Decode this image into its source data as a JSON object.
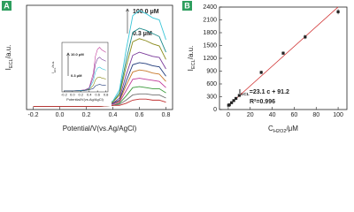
{
  "chart_data": [
    {
      "type": "line",
      "panel_label": "A",
      "xlabel": "Potential/V(vs.Ag/AgCl)",
      "ylabel": {
        "text": "I",
        "sub": "ECL",
        "rest": "/a.u."
      },
      "annotations": [
        "100.0 μM",
        "0.3 μM"
      ],
      "xlim": [
        -0.25,
        0.85
      ],
      "ylim": [
        0,
        100
      ],
      "xticks": [
        -0.2,
        {
          "value": 0,
          "label": "0.0"
        },
        0.2,
        0.4,
        0.6,
        0.8
      ],
      "x": [
        -0.2,
        0,
        0.2,
        0.3,
        0.4,
        0.45,
        0.5,
        0.55,
        0.6,
        0.65,
        0.7,
        0.75,
        0.8
      ],
      "series": [
        {
          "color": "#3cc6d8",
          "values": [
            3,
            3,
            4,
            5,
            8,
            19,
            57,
            90,
            95,
            92,
            88,
            86,
            67
          ]
        },
        {
          "color": "#1a8a8a",
          "values": [
            3,
            3,
            4,
            5,
            7,
            16,
            47,
            74,
            78,
            76,
            73,
            70,
            55
          ]
        },
        {
          "color": "#8a8a1a",
          "values": [
            3,
            3,
            4,
            5,
            7,
            14,
            41,
            65,
            68,
            66,
            63,
            61,
            48
          ]
        },
        {
          "color": "#7a3a9a",
          "values": [
            3,
            3,
            3,
            4,
            6,
            11,
            33,
            52,
            55,
            53,
            51,
            50,
            39
          ]
        },
        {
          "color": "#1f3a7a",
          "values": [
            3,
            3,
            3,
            4,
            6,
            9,
            27,
            43,
            45,
            44,
            42,
            41,
            32
          ]
        },
        {
          "color": "#c8782a",
          "values": [
            3,
            3,
            3,
            4,
            5,
            8,
            23,
            36,
            38,
            37,
            35,
            34,
            27
          ]
        },
        {
          "color": "#c03a9a",
          "values": [
            3,
            3,
            3,
            4,
            5,
            7,
            18,
            29,
            30,
            29,
            28,
            27,
            21
          ]
        },
        {
          "color": "#3a9a3a",
          "values": [
            3,
            3,
            3,
            3,
            4,
            6,
            13,
            21,
            22,
            21,
            20,
            20,
            16
          ]
        },
        {
          "color": "#707070",
          "values": [
            3,
            3,
            3,
            3,
            4,
            5,
            9,
            14,
            15,
            15,
            14,
            14,
            11
          ]
        },
        {
          "color": "#c03030",
          "values": [
            3,
            3,
            3,
            3,
            4,
            4,
            6,
            9,
            10,
            10,
            9,
            9,
            7
          ]
        }
      ]
    },
    {
      "type": "line",
      "xlabel": "Potential/V(vs.Ag/AgCl)",
      "ylabel": {
        "text": "I",
        "sub": "ECL",
        "rest": "/a.u."
      },
      "annotations": [
        "10.0 μM",
        "0.3 μM"
      ],
      "xlim": [
        -0.25,
        0.85
      ],
      "ylim": [
        0,
        100
      ],
      "xticks": [
        -0.2,
        {
          "value": 0,
          "label": "0.0"
        },
        0.2,
        0.4,
        0.6,
        0.8
      ],
      "x": [
        -0.2,
        0,
        0.2,
        0.3,
        0.4,
        0.5,
        0.55,
        0.6,
        0.65,
        0.7,
        0.8
      ],
      "series": [
        {
          "color": "#c03a9a",
          "values": [
            2,
            2,
            3,
            4,
            8,
            38,
            72,
            86,
            90,
            85,
            80
          ]
        },
        {
          "color": "#7a3a9a",
          "values": [
            2,
            2,
            3,
            4,
            7,
            30,
            56,
            67,
            70,
            66,
            62
          ]
        },
        {
          "color": "#3cc6d8",
          "values": [
            2,
            2,
            3,
            3,
            6,
            22,
            40,
            48,
            50,
            47,
            44
          ]
        },
        {
          "color": "#8a8a1a",
          "values": [
            2,
            2,
            2,
            3,
            5,
            13,
            24,
            29,
            30,
            28,
            26
          ]
        },
        {
          "color": "#1f3a7a",
          "values": [
            2,
            2,
            2,
            3,
            4,
            7,
            12,
            14,
            15,
            14,
            13
          ]
        }
      ]
    },
    {
      "type": "scatter",
      "panel_label": "B",
      "xlabel": {
        "text": "C",
        "sub": "H2O2",
        "rest": "/μM"
      },
      "ylabel": {
        "text": "I",
        "sub": "ECL",
        "rest": "/a.u."
      },
      "annotations": [
        {
          "text": "I",
          "sub": "ECL",
          "rest": "=23.1 c + 91.2"
        },
        "R²=0.996"
      ],
      "xlim": [
        -8,
        108
      ],
      "ylim": [
        0,
        2400
      ],
      "xticks": [
        0,
        20,
        40,
        60,
        80,
        100
      ],
      "yticks": [
        0,
        300,
        600,
        900,
        1200,
        1500,
        1800,
        2100,
        2400
      ],
      "x": [
        0.3,
        1,
        3,
        5,
        7,
        10,
        30,
        50,
        70,
        100
      ],
      "values": [
        100,
        110,
        160,
        210,
        260,
        330,
        870,
        1320,
        1700,
        2290
      ],
      "errors": [
        20,
        20,
        20,
        20,
        20,
        30,
        40,
        40,
        50,
        60
      ],
      "color": "#222222",
      "fit_color": "#d03030",
      "fit": {
        "slope": 23.1,
        "intercept": 91.2
      }
    }
  ]
}
